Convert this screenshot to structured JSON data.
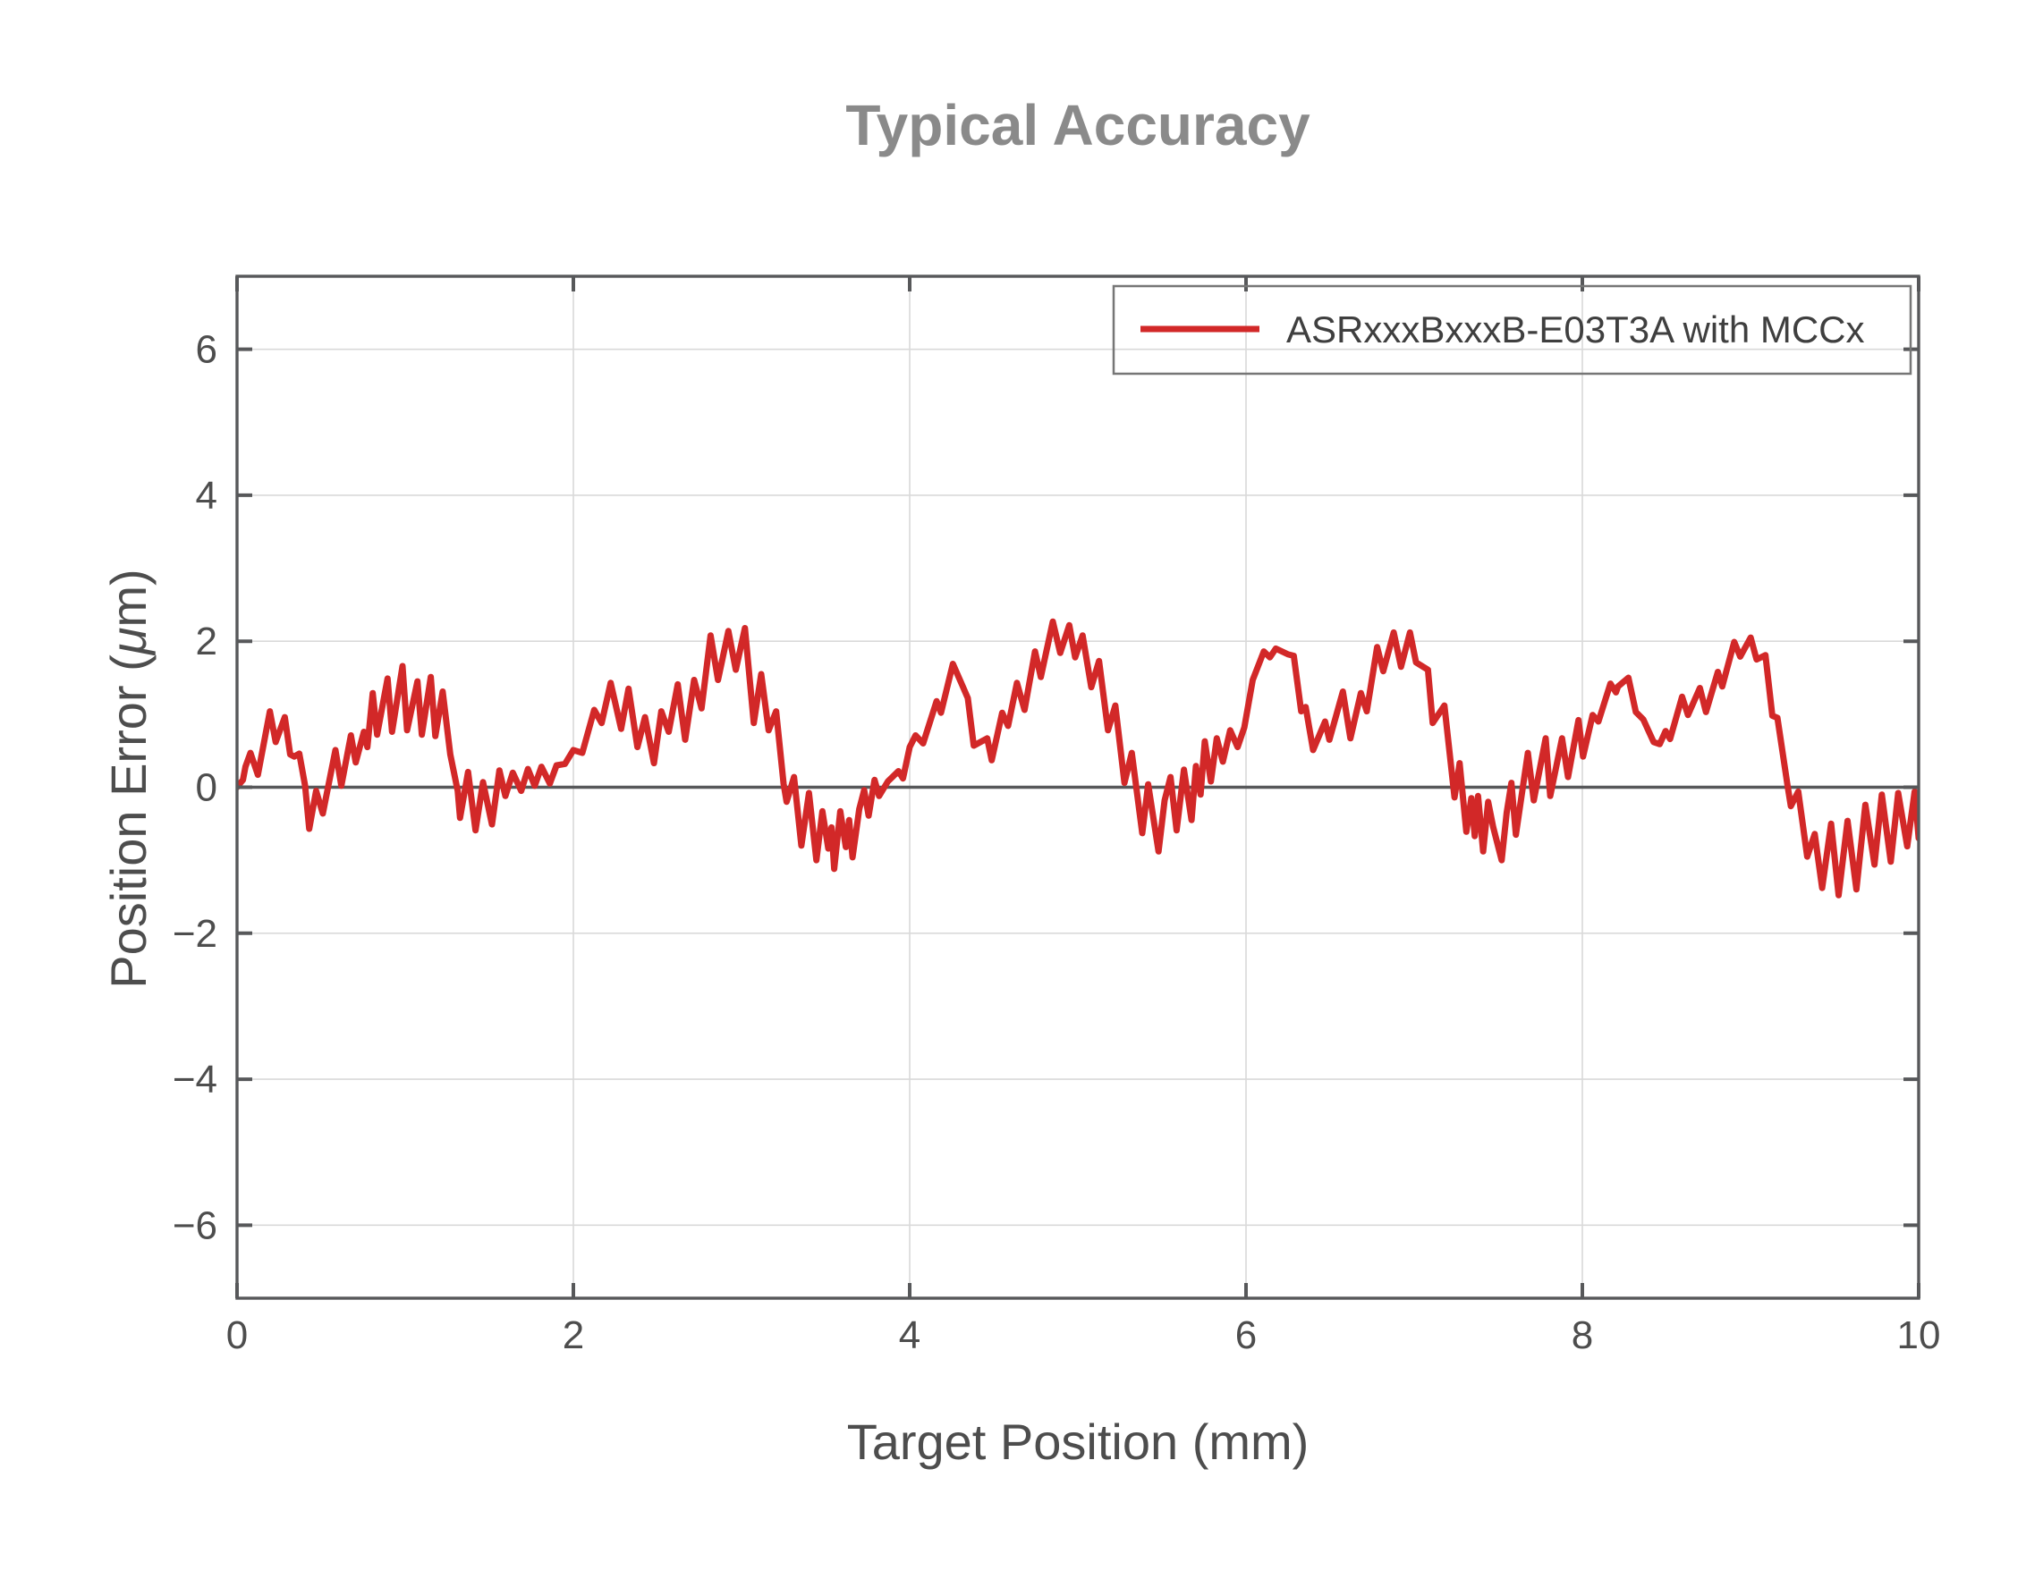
{
  "chart_data": {
    "type": "line",
    "title": "Typical Accuracy",
    "xlabel": "Target Position (mm)",
    "ylabel": "Position Error (μm)",
    "xlim": [
      0,
      10
    ],
    "ylim": [
      -7,
      7
    ],
    "xticks": [
      0,
      2,
      4,
      6,
      8,
      10
    ],
    "yticks": [
      -6,
      -4,
      -2,
      0,
      2,
      4,
      6
    ],
    "grid": true,
    "zero_line": true,
    "legend_position": "top-right",
    "colors": {
      "line": "#d22828",
      "axis": "#57585a",
      "grid": "#d9d9d9",
      "title": "#8a8a8a",
      "tick_label": "#4d4d4d",
      "legend_border": "#767676",
      "legend_text": "#3f3f3f",
      "background": "#ffffff"
    },
    "series": [
      {
        "name": "ASRxxxBxxxB-E03T3A with MCCx",
        "x": [
          0,
          0.02,
          0.035,
          0.05,
          0.08,
          0.124,
          0.195,
          0.23,
          0.284,
          0.316,
          0.34,
          0.37,
          0.405,
          0.429,
          0.47,
          0.51,
          0.585,
          0.62,
          0.677,
          0.706,
          0.754,
          0.775,
          0.807,
          0.833,
          0.895,
          0.922,
          0.984,
          1.011,
          1.073,
          1.099,
          1.152,
          1.179,
          1.223,
          1.268,
          1.312,
          1.326,
          1.374,
          1.418,
          1.463,
          1.516,
          1.56,
          1.596,
          1.64,
          1.69,
          1.73,
          1.77,
          1.81,
          1.86,
          1.9,
          1.95,
          2.0,
          2.053,
          2.124,
          2.168,
          2.222,
          2.284,
          2.328,
          2.381,
          2.426,
          2.479,
          2.523,
          2.567,
          2.621,
          2.665,
          2.718,
          2.762,
          2.816,
          2.86,
          2.922,
          2.966,
          3.02,
          3.073,
          3.117,
          3.161,
          3.206,
          3.25,
          3.268,
          3.312,
          3.356,
          3.401,
          3.445,
          3.481,
          3.516,
          3.535,
          3.551,
          3.587,
          3.62,
          3.64,
          3.66,
          3.7,
          3.729,
          3.756,
          3.791,
          3.818,
          3.87,
          3.933,
          3.96,
          4.0,
          4.035,
          4.08,
          4.16,
          4.186,
          4.257,
          4.31,
          4.346,
          4.381,
          4.461,
          4.488,
          4.55,
          4.585,
          4.638,
          4.683,
          4.745,
          4.78,
          4.851,
          4.895,
          4.949,
          4.984,
          5.028,
          5.08,
          5.126,
          5.179,
          5.223,
          5.277,
          5.321,
          5.383,
          5.418,
          5.48,
          5.516,
          5.551,
          5.587,
          5.631,
          5.676,
          5.702,
          5.73,
          5.755,
          5.791,
          5.826,
          5.862,
          5.906,
          5.95,
          5.99,
          6.04,
          6.106,
          6.142,
          6.177,
          6.25,
          6.284,
          6.328,
          6.355,
          6.399,
          6.47,
          6.496,
          6.576,
          6.621,
          6.683,
          6.718,
          6.78,
          6.816,
          6.878,
          6.922,
          6.975,
          7.011,
          7.082,
          7.11,
          7.18,
          7.24,
          7.27,
          7.31,
          7.34,
          7.36,
          7.38,
          7.41,
          7.44,
          7.47,
          7.52,
          7.55,
          7.578,
          7.605,
          7.676,
          7.711,
          7.782,
          7.809,
          7.879,
          7.915,
          7.977,
          8.004,
          8.061,
          8.096,
          8.167,
          8.2,
          8.212,
          8.274,
          8.318,
          8.362,
          8.424,
          8.46,
          8.495,
          8.522,
          8.593,
          8.628,
          8.699,
          8.735,
          8.806,
          8.832,
          8.903,
          8.939,
          9.001,
          9.036,
          9.089,
          9.13,
          9.16,
          9.222,
          9.24,
          9.284,
          9.337,
          9.382,
          9.426,
          9.479,
          9.524,
          9.577,
          9.63,
          9.683,
          9.737,
          9.781,
          9.834,
          9.878,
          9.932,
          9.976,
          10.0
        ],
        "y": [
          0,
          0.06,
          0.1,
          0.28,
          0.47,
          0.17,
          1.04,
          0.62,
          0.96,
          0.45,
          0.42,
          0.46,
          0.02,
          -0.57,
          -0.05,
          -0.36,
          0.51,
          0.02,
          0.71,
          0.34,
          0.76,
          0.55,
          1.29,
          0.72,
          1.49,
          0.76,
          1.66,
          0.78,
          1.45,
          0.72,
          1.51,
          0.7,
          1.31,
          0.45,
          -0.05,
          -0.42,
          0.21,
          -0.59,
          0.07,
          -0.51,
          0.23,
          -0.12,
          0.2,
          -0.05,
          0.25,
          0.02,
          0.28,
          0.05,
          0.3,
          0.32,
          0.51,
          0.47,
          1.06,
          0.88,
          1.43,
          0.8,
          1.35,
          0.55,
          0.96,
          0.33,
          1.04,
          0.76,
          1.41,
          0.65,
          1.47,
          1.08,
          2.08,
          1.47,
          2.14,
          1.61,
          2.18,
          0.88,
          1.55,
          0.78,
          1.04,
          0.05,
          -0.2,
          0.14,
          -0.8,
          -0.08,
          -1.0,
          -0.33,
          -0.84,
          -0.55,
          -1.12,
          -0.33,
          -0.82,
          -0.45,
          -0.96,
          -0.3,
          -0.04,
          -0.39,
          0.1,
          -0.12,
          0.08,
          0.22,
          0.12,
          0.55,
          0.71,
          0.6,
          1.18,
          1.02,
          1.69,
          1.41,
          1.22,
          0.57,
          0.67,
          0.37,
          1.02,
          0.84,
          1.43,
          1.06,
          1.86,
          1.51,
          2.27,
          1.84,
          2.22,
          1.78,
          2.08,
          1.37,
          1.73,
          0.78,
          1.12,
          0.06,
          0.47,
          -0.63,
          0.04,
          -0.88,
          -0.18,
          0.14,
          -0.59,
          0.24,
          -0.45,
          0.29,
          -0.1,
          0.63,
          0.08,
          0.67,
          0.35,
          0.78,
          0.55,
          0.82,
          1.47,
          1.86,
          1.78,
          1.9,
          1.82,
          1.8,
          1.04,
          1.1,
          0.51,
          0.9,
          0.65,
          1.31,
          0.67,
          1.29,
          1.04,
          1.92,
          1.59,
          2.12,
          1.65,
          2.12,
          1.71,
          1.61,
          0.88,
          1.12,
          -0.14,
          0.33,
          -0.61,
          -0.15,
          -0.67,
          -0.12,
          -0.88,
          -0.2,
          -0.55,
          -1.0,
          -0.35,
          0.06,
          -0.65,
          0.47,
          -0.18,
          0.67,
          -0.12,
          0.67,
          0.14,
          0.92,
          0.42,
          0.99,
          0.9,
          1.42,
          1.3,
          1.38,
          1.5,
          1.03,
          0.93,
          0.62,
          0.59,
          0.77,
          0.66,
          1.24,
          0.99,
          1.36,
          1.03,
          1.58,
          1.38,
          1.99,
          1.79,
          2.05,
          1.75,
          1.81,
          0.98,
          0.95,
          0.0,
          -0.26,
          -0.06,
          -0.95,
          -0.64,
          -1.38,
          -0.5,
          -1.48,
          -0.46,
          -1.4,
          -0.24,
          -1.06,
          -0.1,
          -1.02,
          -0.08,
          -0.81,
          -0.06,
          -0.7
        ]
      }
    ]
  }
}
